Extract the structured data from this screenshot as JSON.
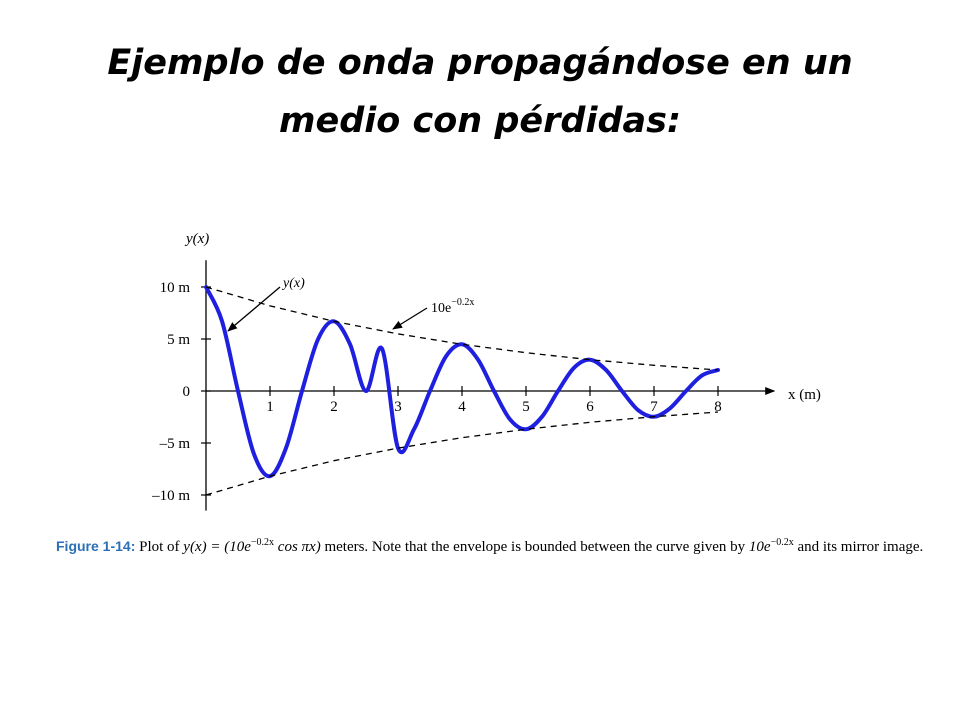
{
  "title": {
    "line1": "Ejemplo de onda propagándose en un",
    "line2": "medio con pérdidas:"
  },
  "chart_data": {
    "type": "line",
    "xlabel": "x (m)",
    "ylabel": "y(x)",
    "xlim": [
      0,
      8.8
    ],
    "ylim": [
      -11.5,
      12
    ],
    "x_ticks": [
      1,
      2,
      3,
      4,
      5,
      6,
      7,
      8
    ],
    "x_tick_labels": [
      "1",
      "2",
      "3",
      "4",
      "5",
      "6",
      "7",
      "8"
    ],
    "y_ticks": [
      10,
      5,
      0,
      -5,
      -10
    ],
    "y_tick_labels": [
      "10 m",
      "5 m",
      "0",
      "–5 m",
      "–10 m"
    ],
    "series": [
      {
        "name": "y(x)",
        "style": "solid",
        "color": "#1f1fe0",
        "x": [
          0,
          0.25,
          0.5,
          0.75,
          1,
          1.25,
          1.5,
          1.75,
          2,
          2.25,
          2.5,
          2.75,
          3,
          3.25,
          3.5,
          3.75,
          4,
          4.25,
          4.5,
          4.75,
          5,
          5.25,
          5.5,
          5.75,
          6,
          6.25,
          6.5,
          6.75,
          7,
          7.25,
          7.5,
          7.75,
          8
        ],
        "y": [
          10,
          6.72,
          0,
          -6.07,
          -8.19,
          -5.49,
          0,
          4.97,
          6.7,
          4.5,
          0,
          4.07,
          -5.49,
          -3.68,
          0,
          3.33,
          4.49,
          3.02,
          0,
          -2.73,
          -3.68,
          -2.47,
          0,
          2.23,
          3.01,
          2.02,
          0,
          -1.83,
          -2.47,
          -1.66,
          0,
          1.5,
          2.02
        ]
      },
      {
        "name": "10e^{-0.2x}",
        "style": "dashed",
        "color": "#000000",
        "x": [
          0,
          1,
          2,
          3,
          4,
          5,
          6,
          7,
          8
        ],
        "y": [
          10,
          8.19,
          6.7,
          5.49,
          4.49,
          3.68,
          3.01,
          2.47,
          2.02
        ]
      },
      {
        "name": "-10e^{-0.2x}",
        "style": "dashed",
        "color": "#000000",
        "x": [
          0,
          1,
          2,
          3,
          4,
          5,
          6,
          7,
          8
        ],
        "y": [
          -10,
          -8.19,
          -6.7,
          -5.49,
          -4.49,
          -3.68,
          -3.01,
          -2.47,
          -2.02
        ]
      }
    ],
    "annotations": [
      {
        "text": "y(x)",
        "target": "y(x) curve"
      },
      {
        "text": "10e",
        "superscript": "−0.2x",
        "target": "upper envelope"
      }
    ]
  },
  "caption": {
    "figure_label": "Figure 1-14:",
    "text_a": " Plot of ",
    "eq_a": "y(x) = (10e",
    "eq_a_sup": "−0.2x",
    "eq_a_end": " cos πx)",
    "text_b": " meters. Note that the envelope is bounded between the curve given by ",
    "eq_b": "10e",
    "eq_b_sup": "−0.2x",
    "text_c": " and its mirror image."
  }
}
